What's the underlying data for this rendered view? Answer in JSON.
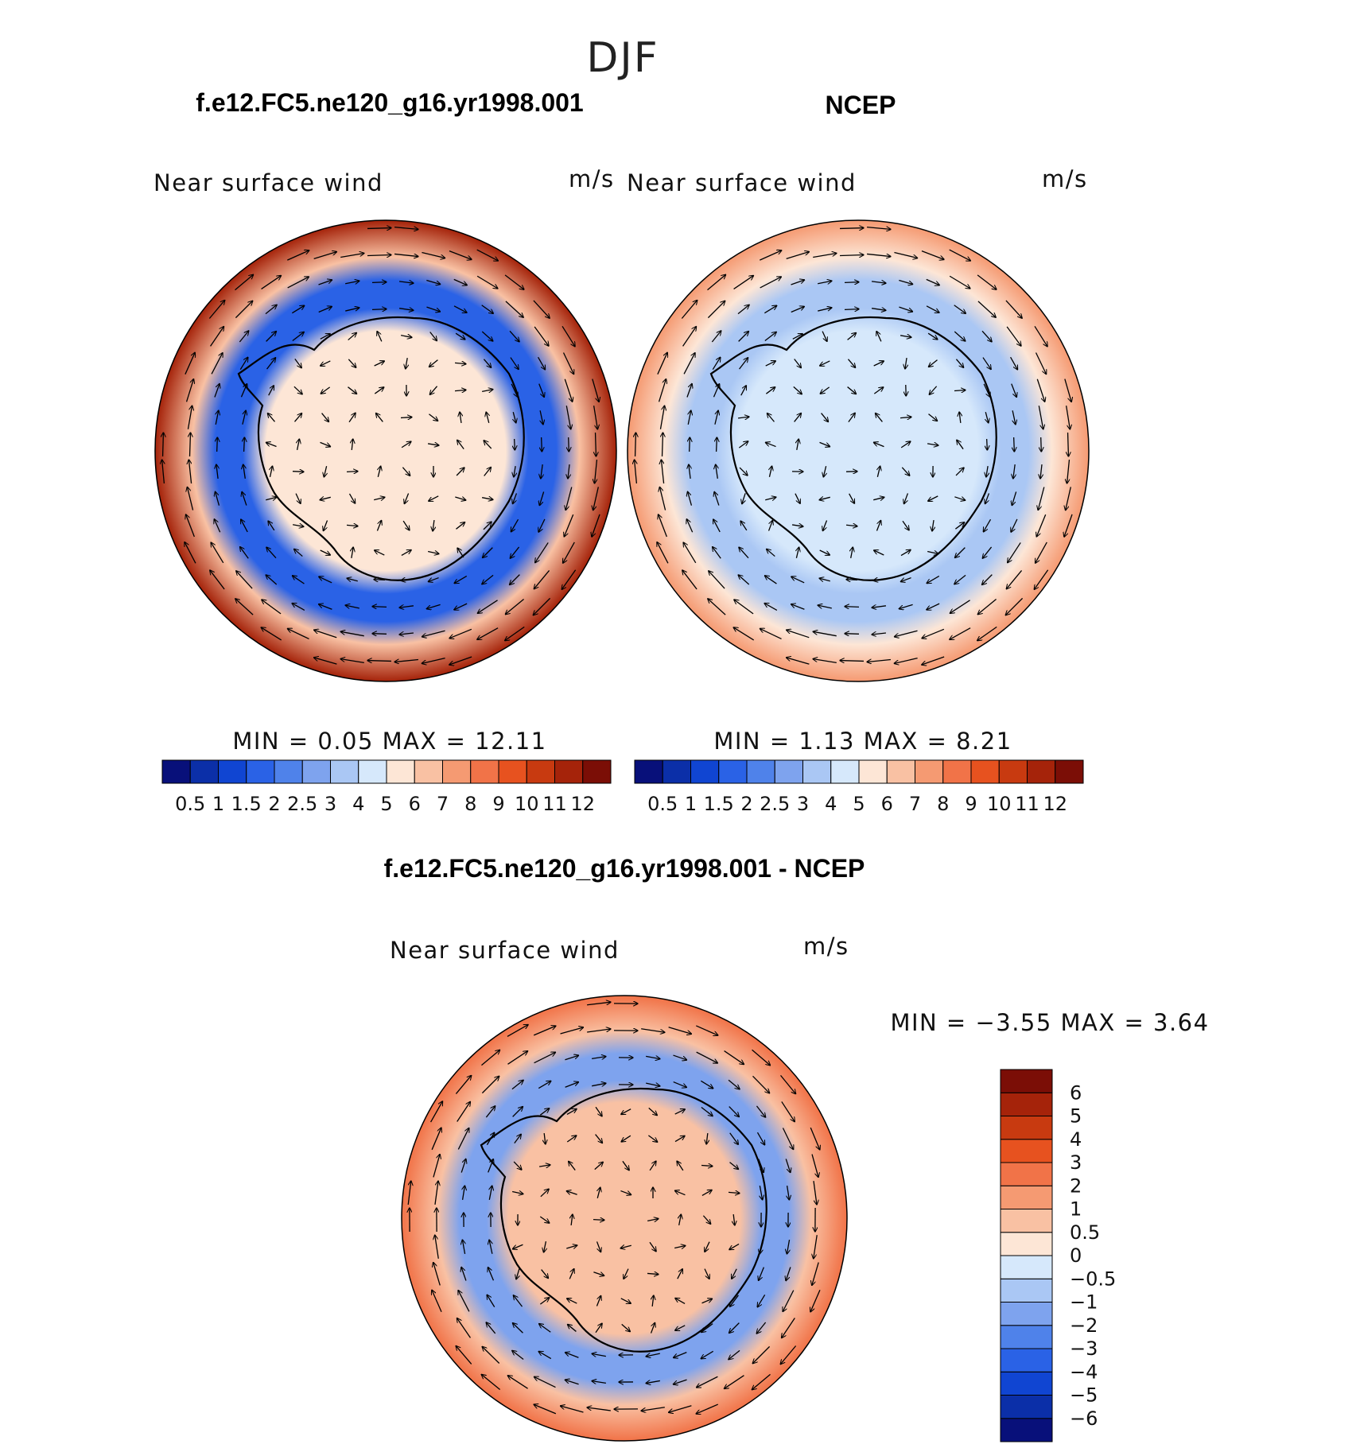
{
  "figure": {
    "suptitle": "DJF"
  },
  "chart_data": [
    {
      "type": "heatmap",
      "projection": "south-polar-stereographic",
      "title": "f.e12.FC5.ne120_g16.yr1998.001",
      "left_label": "Near surface wind",
      "right_label": "m/s",
      "min_max_text": "MIN =    0.05  MAX =    12.11",
      "min": 0.05,
      "max": 12.11,
      "colorbar": {
        "orientation": "horizontal",
        "levels": [
          "0.5",
          "1",
          "1.5",
          "2",
          "2.5",
          "3",
          "4",
          "5",
          "6",
          "7",
          "8",
          "9",
          "10",
          "11",
          "12"
        ],
        "colors": [
          "#08107a",
          "#0b2fa8",
          "#1045d2",
          "#2a62e6",
          "#4f82ea",
          "#7ea3ee",
          "#aac7f4",
          "#d6e8fb",
          "#fde6d6",
          "#f9c1a3",
          "#f59a72",
          "#f17348",
          "#e7521f",
          "#c83a10",
          "#a5230a",
          "#7b0e06"
        ]
      },
      "field_summary": {
        "outer_ring_speed": 11.5,
        "inner_ring_speed": 1.5,
        "interior_speed": 5.5
      }
    },
    {
      "type": "heatmap",
      "projection": "south-polar-stereographic",
      "title": "NCEP",
      "left_label": "Near surface wind",
      "right_label": "m/s",
      "min_max_text": "MIN =    1.13  MAX =    8.21",
      "min": 1.13,
      "max": 8.21,
      "colorbar": {
        "orientation": "horizontal",
        "levels": [
          "0.5",
          "1",
          "1.5",
          "2",
          "2.5",
          "3",
          "4",
          "5",
          "6",
          "7",
          "8",
          "9",
          "10",
          "11",
          "12"
        ],
        "colors": [
          "#08107a",
          "#0b2fa8",
          "#1045d2",
          "#2a62e6",
          "#4f82ea",
          "#7ea3ee",
          "#aac7f4",
          "#d6e8fb",
          "#fde6d6",
          "#f9c1a3",
          "#f59a72",
          "#f17348",
          "#e7521f",
          "#c83a10",
          "#a5230a",
          "#7b0e06"
        ]
      },
      "field_summary": {
        "outer_ring_speed": 7.0,
        "inner_ring_speed": 3.5,
        "interior_speed": 4.5
      }
    },
    {
      "type": "heatmap",
      "projection": "south-polar-stereographic",
      "title": "f.e12.FC5.ne120_g16.yr1998.001 - NCEP",
      "left_label": "Near surface wind",
      "right_label": "m/s",
      "min_max_text": "MIN =  −3.55  MAX =    3.64",
      "min": -3.55,
      "max": 3.64,
      "colorbar": {
        "orientation": "vertical",
        "levels": [
          "−6",
          "−5",
          "−4",
          "−3",
          "−2",
          "−1",
          "−0.5",
          "0",
          "0.5",
          "1",
          "2",
          "3",
          "4",
          "5",
          "6"
        ],
        "colors": [
          "#08107a",
          "#0b2fa8",
          "#1045d2",
          "#2a62e6",
          "#4f82ea",
          "#7ea3ee",
          "#aac7f4",
          "#d6e8fb",
          "#fde6d6",
          "#f9c1a3",
          "#f59a72",
          "#f17348",
          "#e7521f",
          "#c83a10",
          "#a5230a",
          "#7b0e06"
        ]
      },
      "field_summary": {
        "outer_ring_speed": 2.5,
        "inner_ring_speed": -1.5,
        "interior_speed": 0.7
      }
    }
  ]
}
